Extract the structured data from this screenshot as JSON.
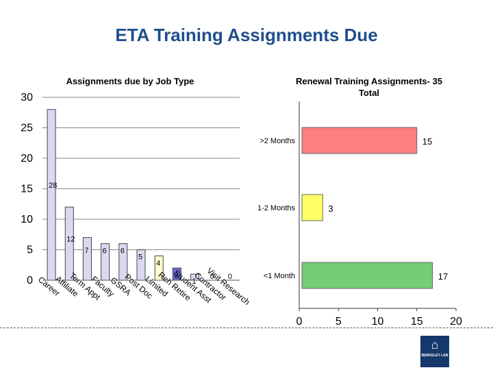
{
  "slide": {
    "title": "ETA Training Assignments Due"
  },
  "logo": {
    "text": "BERKELEY LAB",
    "icon": "berkeley-lab-logo-icon"
  },
  "chart_data": [
    {
      "type": "bar",
      "title": "Assignments due by Job Type",
      "categories": [
        "Career",
        "Affiliate",
        "Term Appt",
        "Faculty",
        "GSRA",
        "Post Doc",
        "Limited",
        "Reh Retire",
        "Student Asst",
        "Contractor",
        "Visit Research"
      ],
      "values": [
        28,
        12,
        7,
        6,
        6,
        5,
        4,
        2,
        1,
        0,
        0
      ],
      "ylim": [
        0,
        30
      ],
      "yticks": [
        0,
        5,
        10,
        15,
        20,
        25,
        30
      ],
      "grid": true,
      "colors": [
        "#d9d9f3",
        "#d9d9f3",
        "#d9d9f3",
        "#d9d9f3",
        "#d9d9f3",
        "#d9d9f3",
        "#ffffcc",
        "#6b6bd6",
        "#d9d9f3",
        "#d9d9f3",
        "#d9d9f3"
      ]
    },
    {
      "type": "bar",
      "orientation": "horizontal",
      "title": "Renewal Training Assignments- 35 Total",
      "categories": [
        ">2 Months",
        "1-2 Months",
        "<1 Month"
      ],
      "values": [
        15,
        3,
        17
      ],
      "xlim": [
        0,
        20
      ],
      "xticks": [
        0,
        5,
        10,
        15,
        20
      ],
      "colors": [
        "#ff7f7f",
        "#ffff66",
        "#77cc77"
      ]
    }
  ]
}
